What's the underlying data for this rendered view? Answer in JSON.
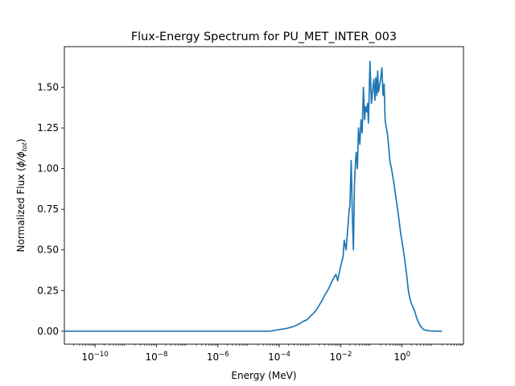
{
  "chart_data": {
    "type": "line",
    "title": "Flux-Energy Spectrum for PU_MET_INTER_003",
    "xlabel": "Energy (MeV)",
    "ylabel_main": "Normalized Flux (",
    "ylabel_sym": "ϕ/ϕ",
    "ylabel_sub": "tot",
    "ylabel_end": ")",
    "xscale": "log",
    "xlim": [
      1e-11,
      100
    ],
    "ylim": [
      -0.08,
      1.75
    ],
    "grid": false,
    "line_color": "#1f77b4",
    "x_ticks": [
      {
        "value": 1e-10,
        "base": "10",
        "exp": "−10"
      },
      {
        "value": 1e-08,
        "base": "10",
        "exp": "−8"
      },
      {
        "value": 1e-06,
        "base": "10",
        "exp": "−6"
      },
      {
        "value": 0.0001,
        "base": "10",
        "exp": "−4"
      },
      {
        "value": 0.01,
        "base": "10",
        "exp": "−2"
      },
      {
        "value": 1,
        "base": "10",
        "exp": "0"
      }
    ],
    "y_ticks": [
      {
        "value": 0.0,
        "label": "0.00"
      },
      {
        "value": 0.25,
        "label": "0.25"
      },
      {
        "value": 0.5,
        "label": "0.50"
      },
      {
        "value": 0.75,
        "label": "0.75"
      },
      {
        "value": 1.0,
        "label": "1.00"
      },
      {
        "value": 1.25,
        "label": "1.25"
      },
      {
        "value": 1.5,
        "label": "1.50"
      }
    ],
    "series": [
      {
        "x": [
          1e-11,
          1e-10,
          1e-09,
          1e-08,
          1e-07,
          1e-06,
          1e-05,
          3e-05,
          5e-05,
          0.0001,
          0.00015,
          0.0002,
          0.0003,
          0.0004,
          0.0006,
          0.0008,
          0.001,
          0.0013,
          0.0016,
          0.002,
          0.0025,
          0.003,
          0.0035,
          0.004,
          0.005,
          0.006,
          0.007,
          0.008,
          0.009,
          0.01,
          0.011,
          0.012,
          0.013,
          0.015,
          0.017,
          0.019,
          0.02,
          0.022,
          0.024,
          0.026,
          0.028,
          0.03,
          0.032,
          0.035,
          0.038,
          0.042,
          0.046,
          0.05,
          0.055,
          0.06,
          0.065,
          0.07,
          0.075,
          0.08,
          0.09,
          0.1,
          0.11,
          0.12,
          0.13,
          0.14,
          0.15,
          0.16,
          0.17,
          0.18,
          0.2,
          0.22,
          0.24,
          0.26,
          0.28,
          0.3,
          0.33,
          0.36,
          0.4,
          0.45,
          0.5,
          0.55,
          0.6,
          0.7,
          0.8,
          0.9,
          1.0,
          1.2,
          1.4,
          1.6,
          1.8,
          2.0,
          2.5,
          3.0,
          3.5,
          4.0,
          5.0,
          6.0,
          8.0,
          10.0,
          15.0,
          20.0
        ],
        "y": [
          0.0,
          0.0,
          0.0,
          0.0,
          0.0,
          0.0,
          0.0,
          0.0,
          0.0,
          0.01,
          0.015,
          0.02,
          0.03,
          0.04,
          0.06,
          0.07,
          0.09,
          0.11,
          0.13,
          0.16,
          0.19,
          0.22,
          0.24,
          0.26,
          0.3,
          0.33,
          0.35,
          0.31,
          0.36,
          0.4,
          0.43,
          0.46,
          0.56,
          0.5,
          0.63,
          0.75,
          0.77,
          1.05,
          0.7,
          0.5,
          0.9,
          1.02,
          1.1,
          1.0,
          1.25,
          1.15,
          1.3,
          1.22,
          1.5,
          1.3,
          1.38,
          1.35,
          1.4,
          1.28,
          1.66,
          1.4,
          1.48,
          1.55,
          1.42,
          1.56,
          1.45,
          1.6,
          1.47,
          1.5,
          1.55,
          1.62,
          1.45,
          1.52,
          1.3,
          1.26,
          1.22,
          1.15,
          1.05,
          1.0,
          0.95,
          0.9,
          0.85,
          0.76,
          0.68,
          0.6,
          0.55,
          0.45,
          0.35,
          0.25,
          0.2,
          0.17,
          0.13,
          0.08,
          0.05,
          0.03,
          0.01,
          0.005,
          0.002,
          0.001,
          0.0,
          0.0
        ]
      }
    ]
  }
}
